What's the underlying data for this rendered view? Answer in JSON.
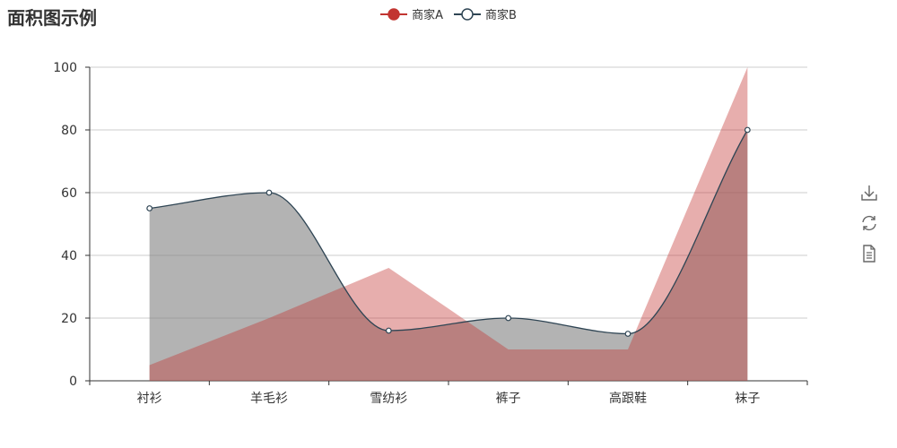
{
  "title": "面积图示例",
  "legend": [
    {
      "name": "商家A",
      "color": "#c23531"
    },
    {
      "name": "商家B",
      "color": "#2f4554"
    }
  ],
  "toolbox": [
    {
      "icon": "download-icon"
    },
    {
      "icon": "refresh-icon"
    },
    {
      "icon": "data-view-icon"
    }
  ],
  "chart_data": {
    "type": "area",
    "title": "面积图示例",
    "categories": [
      "衬衫",
      "羊毛衫",
      "雪纺衫",
      "裤子",
      "高跟鞋",
      "袜子"
    ],
    "ylim": [
      0,
      100
    ],
    "yticks": [
      0,
      20,
      40,
      60,
      80,
      100
    ],
    "grid": true,
    "legend_position": "top-center",
    "series": [
      {
        "name": "商家A",
        "values": [
          5,
          20,
          36,
          10,
          10,
          100
        ],
        "color": "#c23531",
        "area_opacity": 0.4,
        "smooth": false,
        "show_symbols": false
      },
      {
        "name": "商家B",
        "values": [
          55,
          60,
          16,
          20,
          15,
          80
        ],
        "color": "#2f4554",
        "area_color": "#808080",
        "area_opacity": 0.6,
        "smooth": true,
        "show_symbols": true
      }
    ]
  }
}
